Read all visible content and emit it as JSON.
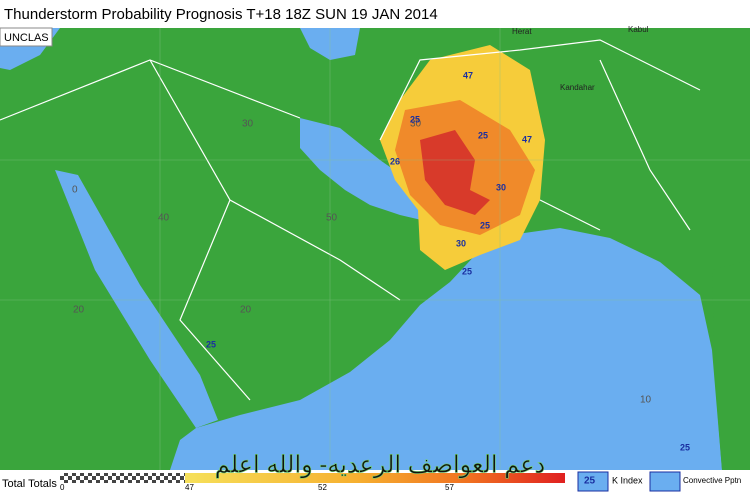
{
  "header": {
    "title": "Thunderstorm Probability Prognosis T+18 18Z SUN 19 JAN 2014",
    "classification": "UNCLAS"
  },
  "places": [
    "Herat",
    "Kabul",
    "Kandahar"
  ],
  "grid_labels": [
    30,
    30,
    40,
    50,
    20,
    20,
    10,
    0
  ],
  "contour_labels": [
    47,
    25,
    25,
    26,
    47,
    30,
    25,
    25,
    25,
    30,
    25
  ],
  "legend": {
    "title": "Total Totals",
    "ticks": [
      0,
      47,
      52,
      57
    ],
    "caption": "دعم العواصف الرعديه- والله اعلم",
    "k_index_sample": 25,
    "k_index": "K Index",
    "convective": "Convective Pptn"
  }
}
